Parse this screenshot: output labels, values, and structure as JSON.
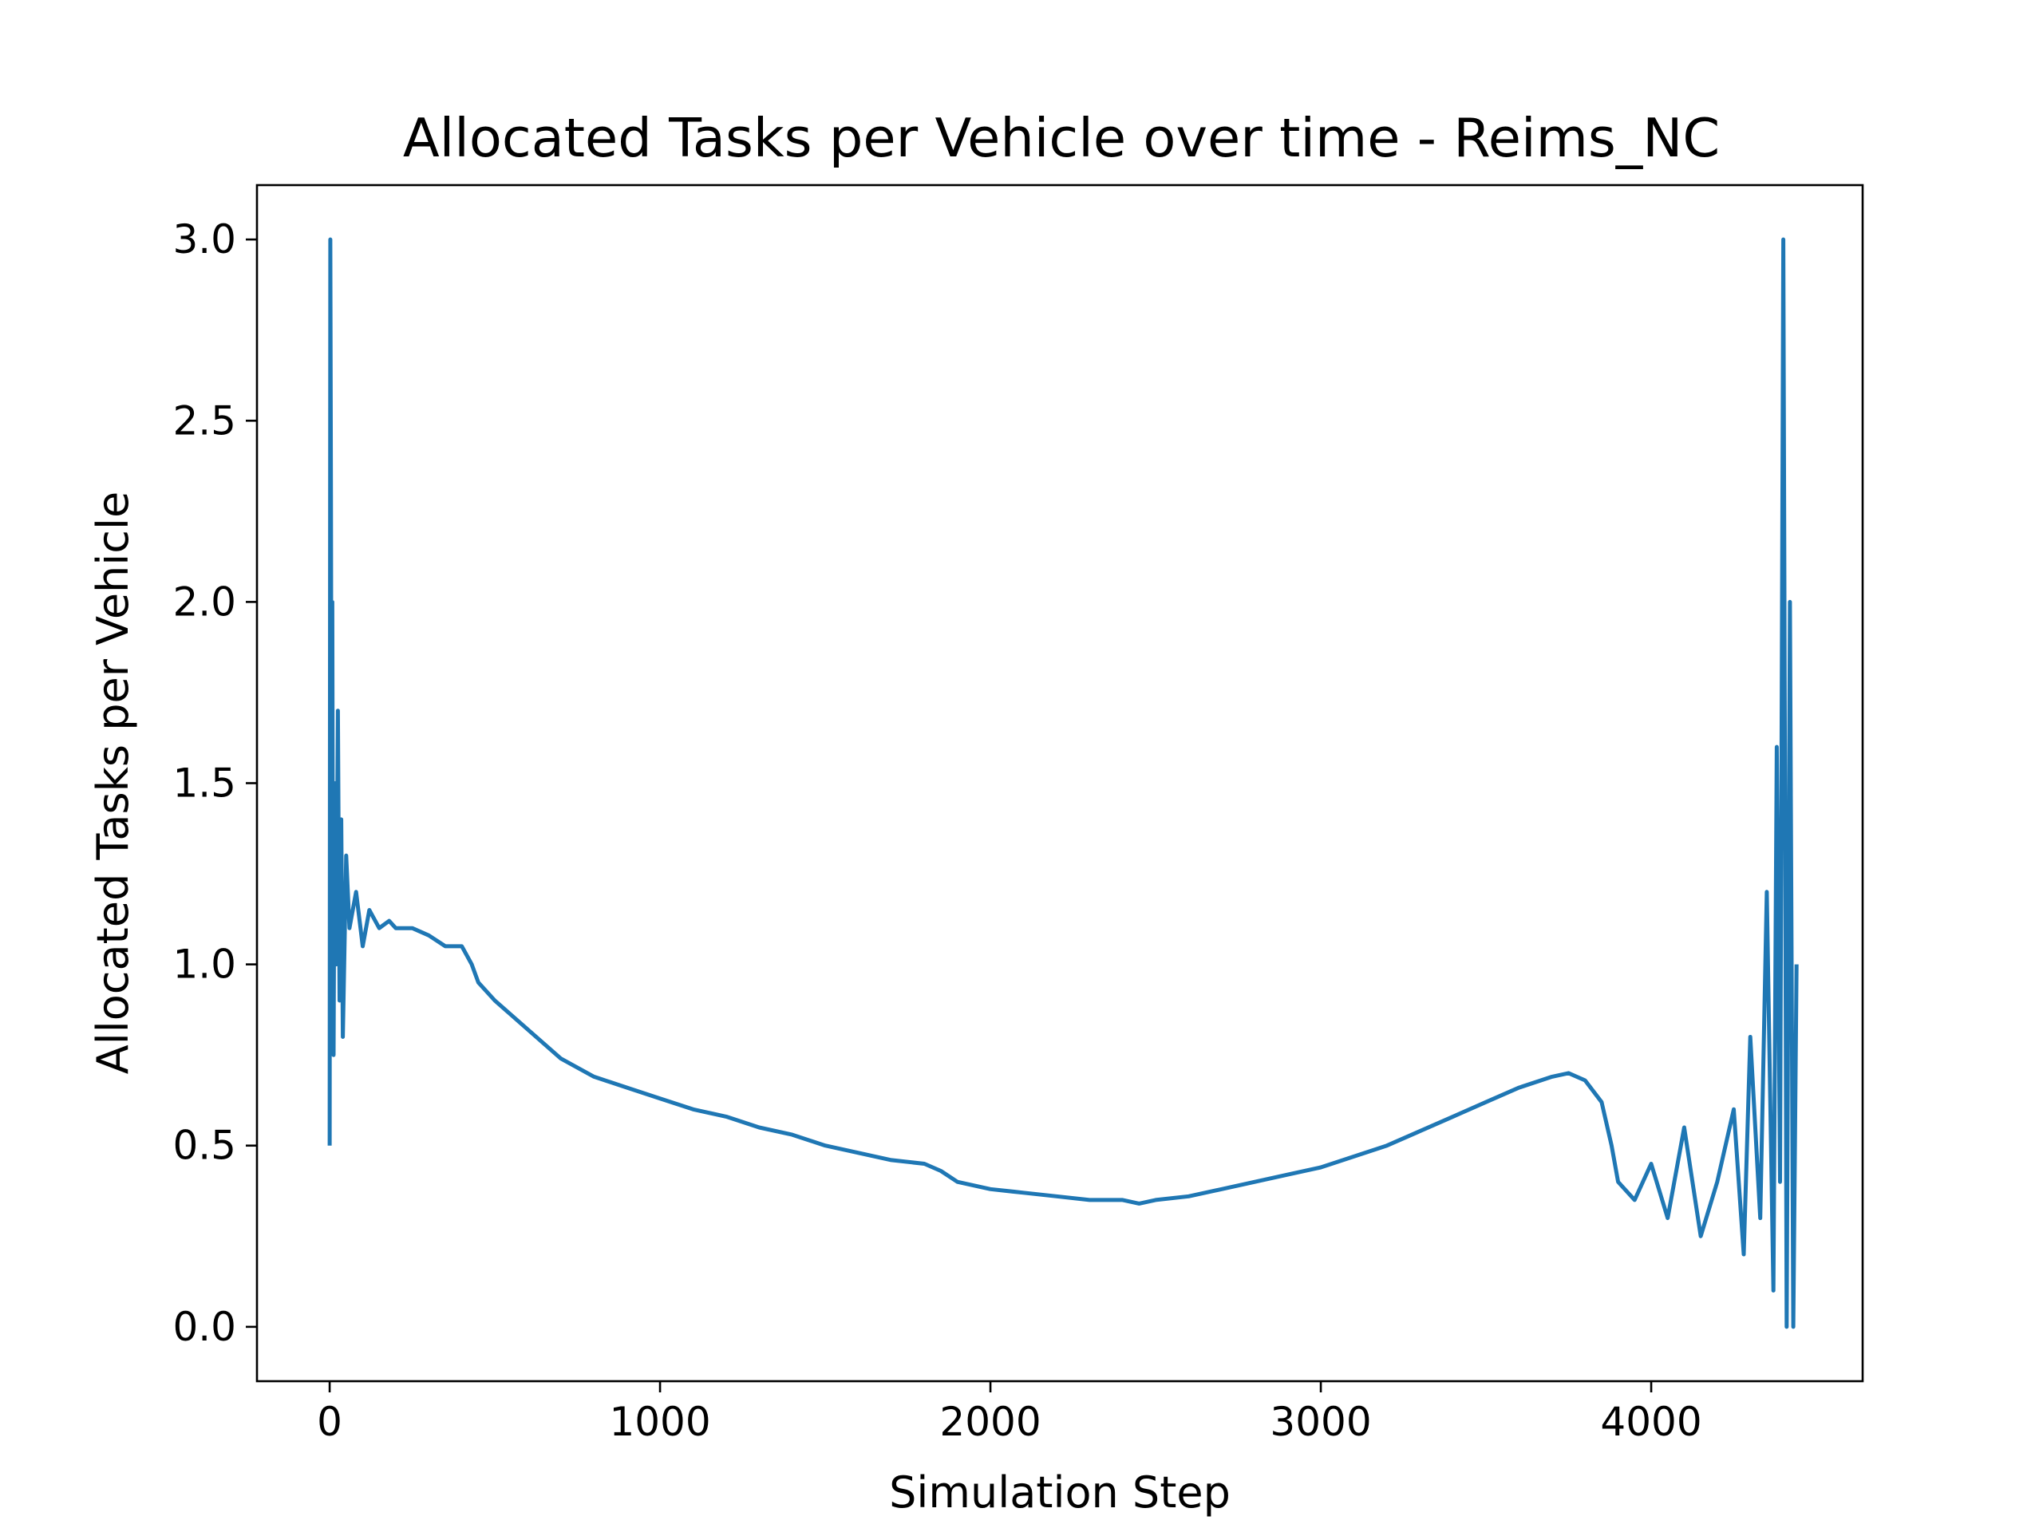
{
  "chart_data": {
    "type": "line",
    "title": "Allocated Tasks per Vehicle over time - Reims_NC",
    "xlabel": "Simulation Step",
    "ylabel": "Allocated Tasks per Vehicle",
    "xlim": [
      -220,
      4640
    ],
    "ylim": [
      -0.15,
      3.15
    ],
    "xticks": [
      0,
      1000,
      2000,
      3000,
      4000
    ],
    "xtick_labels": [
      "0",
      "1000",
      "2000",
      "3000",
      "4000"
    ],
    "yticks": [
      0.0,
      0.5,
      1.0,
      1.5,
      2.0,
      2.5,
      3.0
    ],
    "ytick_labels": [
      "0.0",
      "0.5",
      "1.0",
      "1.5",
      "2.0",
      "2.5",
      "3.0"
    ],
    "grid": false,
    "series_color": "#1f77b4",
    "series": [
      {
        "name": "",
        "x": [
          0,
          2,
          4,
          6,
          8,
          10,
          12,
          15,
          20,
          25,
          30,
          35,
          40,
          50,
          60,
          80,
          100,
          120,
          150,
          180,
          200,
          250,
          300,
          350,
          400,
          430,
          450,
          500,
          600,
          700,
          800,
          900,
          1000,
          1100,
          1200,
          1300,
          1400,
          1500,
          1600,
          1700,
          1800,
          1850,
          1900,
          2000,
          2100,
          2200,
          2300,
          2400,
          2450,
          2500,
          2600,
          2700,
          2800,
          2900,
          3000,
          3100,
          3200,
          3300,
          3400,
          3500,
          3600,
          3700,
          3750,
          3800,
          3850,
          3880,
          3900,
          3950,
          4000,
          4050,
          4100,
          4150,
          4200,
          4250,
          4280,
          4300,
          4330,
          4350,
          4370,
          4380,
          4390,
          4400,
          4410,
          4420,
          4430,
          4440
        ],
        "values": [
          0.5,
          3.0,
          2.3,
          1.2,
          2.0,
          1.1,
          0.75,
          1.5,
          1.0,
          1.7,
          0.9,
          1.4,
          0.8,
          1.3,
          1.1,
          1.2,
          1.05,
          1.15,
          1.1,
          1.12,
          1.1,
          1.1,
          1.08,
          1.05,
          1.05,
          1.0,
          0.95,
          0.9,
          0.82,
          0.74,
          0.69,
          0.66,
          0.63,
          0.6,
          0.58,
          0.55,
          0.53,
          0.5,
          0.48,
          0.46,
          0.45,
          0.43,
          0.4,
          0.38,
          0.37,
          0.36,
          0.35,
          0.35,
          0.34,
          0.35,
          0.36,
          0.38,
          0.4,
          0.42,
          0.44,
          0.47,
          0.5,
          0.54,
          0.58,
          0.62,
          0.66,
          0.69,
          0.7,
          0.68,
          0.62,
          0.5,
          0.4,
          0.35,
          0.45,
          0.3,
          0.55,
          0.25,
          0.4,
          0.6,
          0.2,
          0.8,
          0.3,
          1.2,
          0.1,
          1.6,
          0.4,
          3.0,
          0.0,
          2.0,
          0.0,
          1.0
        ]
      }
    ]
  }
}
